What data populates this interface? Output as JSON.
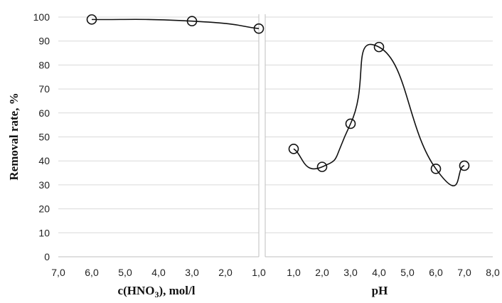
{
  "chart_data": [
    {
      "type": "scatter",
      "smooth_line": true,
      "marker": "open-circle",
      "xlabel": "c(HNO",
      "xlabel_sub": "3",
      "xlabel_rest": "), mol/l",
      "ylabel": "Removal rate, %",
      "x_reversed": true,
      "xlim": [
        1.0,
        7.0
      ],
      "ylim": [
        0,
        100
      ],
      "x_ticks": [
        "7,0",
        "6,0",
        "5,0",
        "4,0",
        "3,0",
        "2,0",
        "1,0"
      ],
      "y_ticks": [
        "0",
        "10",
        "20",
        "30",
        "40",
        "50",
        "60",
        "70",
        "80",
        "90",
        "100"
      ],
      "grid": true,
      "points": [
        {
          "x": 6.0,
          "y": 99.0
        },
        {
          "x": 3.0,
          "y": 98.3
        },
        {
          "x": 1.0,
          "y": 95.2
        }
      ]
    },
    {
      "type": "scatter",
      "smooth_line": true,
      "marker": "open-circle",
      "xlabel": "pH",
      "ylabel": "",
      "x_reversed": false,
      "xlim": [
        0.0,
        8.0
      ],
      "ylim": [
        0,
        100
      ],
      "x_ticks": [
        "1,0",
        "2,0",
        "3,0",
        "4,0",
        "5,0",
        "6,0",
        "7,0",
        "8,0"
      ],
      "grid": true,
      "points": [
        {
          "x": 1.0,
          "y": 45.0
        },
        {
          "x": 2.0,
          "y": 37.5
        },
        {
          "x": 3.0,
          "y": 55.5
        },
        {
          "x": 4.0,
          "y": 87.5
        },
        {
          "x": 6.0,
          "y": 36.7
        },
        {
          "x": 7.0,
          "y": 38.0
        }
      ]
    }
  ]
}
